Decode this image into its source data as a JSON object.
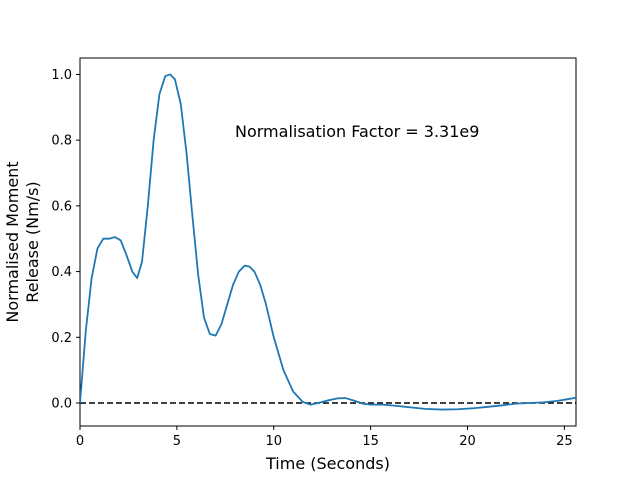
{
  "chart_data": {
    "type": "line",
    "title": "",
    "xlabel": "Time (Seconds)",
    "ylabel_lines": [
      "Normalised Moment",
      "Release (Nm/s)"
    ],
    "xlim": [
      0,
      25.6
    ],
    "ylim": [
      -0.07,
      1.05
    ],
    "xticks": [
      0,
      5,
      10,
      15,
      20,
      25
    ],
    "yticks": [
      0.0,
      0.2,
      0.4,
      0.6,
      0.8,
      1.0
    ],
    "ytick_labels": [
      "0.0",
      "0.2",
      "0.4",
      "0.6",
      "0.8",
      "1.0"
    ],
    "grid": false,
    "legend": "none",
    "annotation": {
      "text": "Normalisation Factor = 3.31e9",
      "x": 8.0,
      "y": 0.81
    },
    "reference_line": {
      "y": 0.0,
      "style": "dashed",
      "color": "#000000"
    },
    "series": [
      {
        "color": "#1f77b4",
        "x": [
          0,
          0.3,
          0.6,
          0.9,
          1.2,
          1.5,
          1.8,
          2.1,
          2.4,
          2.7,
          2.95,
          3.2,
          3.5,
          3.8,
          4.1,
          4.4,
          4.65,
          4.9,
          5.2,
          5.5,
          5.8,
          6.1,
          6.4,
          6.7,
          7.0,
          7.3,
          7.6,
          7.9,
          8.2,
          8.5,
          8.75,
          9.0,
          9.3,
          9.6,
          10.0,
          10.5,
          11.0,
          11.5,
          11.9,
          12.3,
          12.8,
          13.3,
          13.7,
          14.1,
          14.6,
          15.0,
          15.6,
          16.2,
          17.0,
          17.8,
          18.7,
          19.5,
          20.3,
          21.0,
          21.8,
          22.5,
          23.2,
          23.9,
          24.6,
          25.2,
          25.6
        ],
        "y": [
          0.0,
          0.22,
          0.38,
          0.47,
          0.5,
          0.5,
          0.505,
          0.495,
          0.45,
          0.4,
          0.38,
          0.43,
          0.6,
          0.8,
          0.94,
          0.995,
          1.0,
          0.985,
          0.91,
          0.76,
          0.57,
          0.39,
          0.26,
          0.21,
          0.205,
          0.24,
          0.3,
          0.36,
          0.4,
          0.418,
          0.415,
          0.4,
          0.36,
          0.3,
          0.2,
          0.1,
          0.035,
          0.003,
          -0.005,
          0.0,
          0.008,
          0.014,
          0.015,
          0.008,
          -0.002,
          -0.005,
          -0.005,
          -0.008,
          -0.013,
          -0.018,
          -0.02,
          -0.019,
          -0.016,
          -0.012,
          -0.007,
          -0.002,
          0.0,
          0.002,
          0.006,
          0.012,
          0.016
        ]
      }
    ]
  }
}
